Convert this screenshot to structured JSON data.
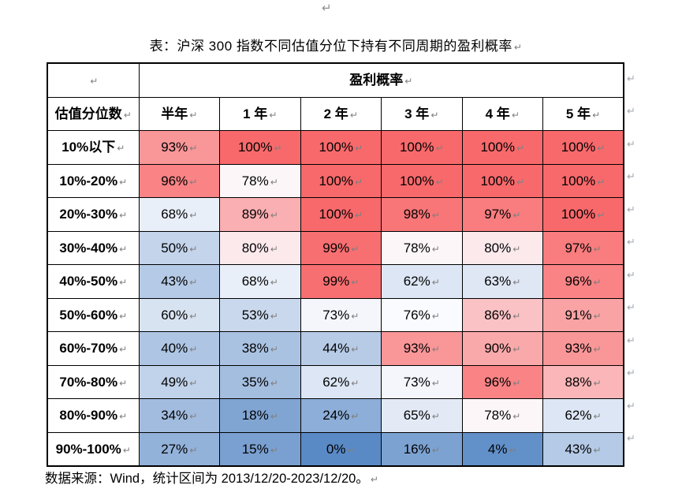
{
  "page": {
    "paragraph_mark": "↵",
    "title": "表：沪深 300 指数不同估值分位下持有不同周期的盈利概率",
    "footer": "数据来源：Wind，统计区间为 2013/12/20-2023/12/20。"
  },
  "chart_data": {
    "type": "heatmap",
    "title": "盈利概率",
    "corner_label": "估值分位数",
    "columns": [
      "半年",
      "1 年",
      "2 年",
      "3 年",
      "4 年",
      "5 年"
    ],
    "rows": [
      "10%以下",
      "10%-20%",
      "20%-30%",
      "30%-40%",
      "40%-50%",
      "50%-60%",
      "60%-70%",
      "70%-80%",
      "80%-90%",
      "90%-100%"
    ],
    "values": [
      [
        93,
        100,
        100,
        100,
        100,
        100
      ],
      [
        96,
        78,
        100,
        100,
        100,
        100
      ],
      [
        68,
        89,
        100,
        98,
        97,
        100
      ],
      [
        50,
        80,
        99,
        78,
        80,
        97
      ],
      [
        43,
        68,
        99,
        62,
        63,
        96
      ],
      [
        60,
        53,
        73,
        76,
        86,
        91
      ],
      [
        40,
        38,
        44,
        93,
        90,
        93
      ],
      [
        49,
        35,
        62,
        73,
        96,
        88
      ],
      [
        34,
        18,
        24,
        65,
        78,
        62
      ],
      [
        27,
        15,
        0,
        16,
        4,
        43
      ]
    ],
    "value_suffix": "%",
    "color_scale": {
      "min_value": 0,
      "mid_value": 77,
      "max_value": 100,
      "min_color": "#5A8AC6",
      "mid_color": "#FCFCFF",
      "max_color": "#F8696B"
    }
  }
}
